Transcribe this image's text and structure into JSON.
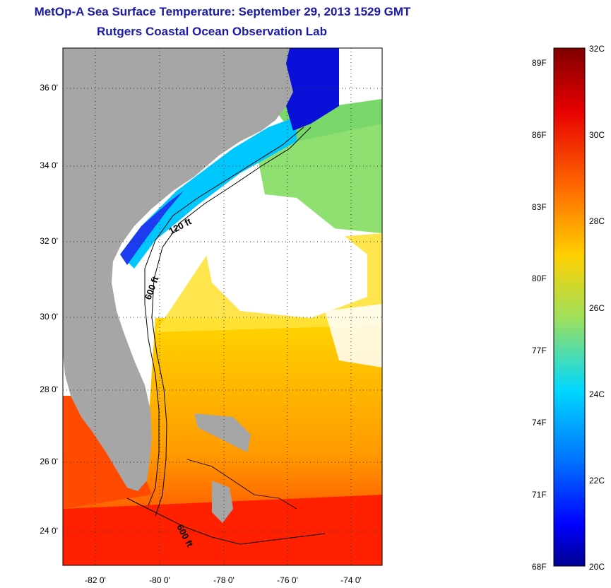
{
  "title": {
    "line1": "MetOp-A Sea Surface Temperature:  September 29, 2013 1529 GMT",
    "line2": "Rutgers Coastal Ocean Observation Lab"
  },
  "map": {
    "y_ticks": [
      "36 0'",
      "34 0'",
      "32 0'",
      "30 0'",
      "28 0'",
      "26 0'",
      "24 0'"
    ],
    "x_ticks": [
      "-82 0'",
      "-80 0'",
      "-78 0'",
      "-76 0'",
      "-74 0'"
    ],
    "contour_labels": [
      "120 ft",
      "600 ft",
      "600 ft"
    ],
    "colors": {
      "land": "#a6a6a6",
      "cloud": "#ffffff",
      "contour": "#000000"
    }
  },
  "colorbar": {
    "celsius": [
      "32C",
      "30C",
      "28C",
      "26C",
      "24C",
      "22C",
      "20C"
    ],
    "fahrenheit": [
      "89F",
      "86F",
      "83F",
      "80F",
      "77F",
      "74F",
      "71F",
      "68F"
    ],
    "gradient": [
      "#7f0000",
      "#ff0000",
      "#ff7f00",
      "#ffff00",
      "#7fff7f",
      "#00ffff",
      "#007fff",
      "#0000ff",
      "#00008f"
    ]
  }
}
